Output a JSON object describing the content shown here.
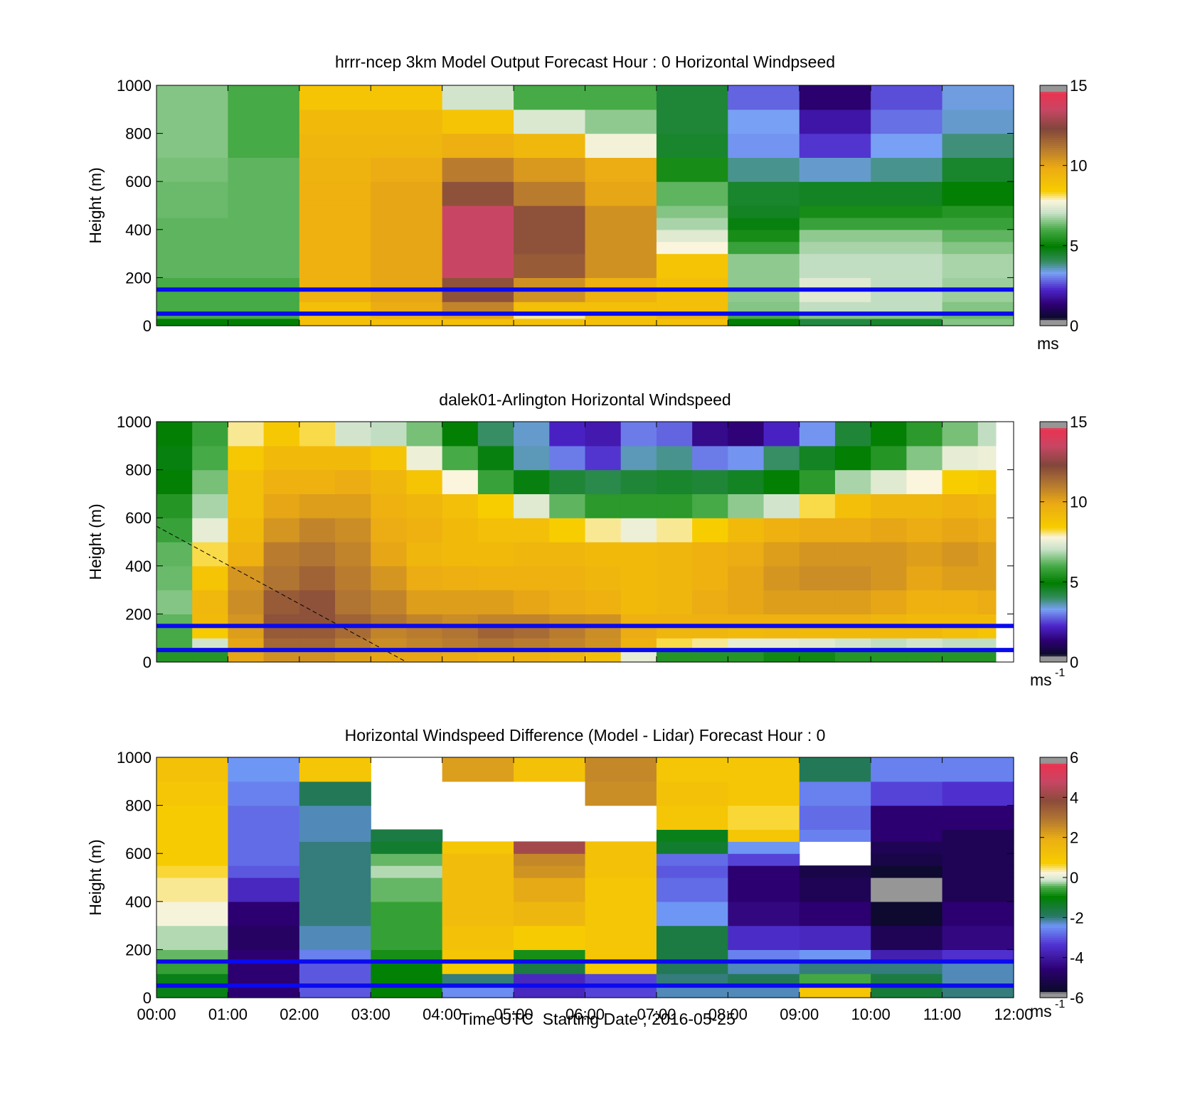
{
  "figure": {
    "xlabel": "Time UTC  Starting Date ; 2016-05-25"
  },
  "chart_data": [
    {
      "type": "heatmap",
      "title": "hrrr-ncep 3km Model Output   Forecast Hour : 0 Horizontal Windpseed",
      "xlabel": "",
      "ylabel": "Height (m)",
      "xlim": [
        0,
        12
      ],
      "ylim": [
        0,
        1000
      ],
      "yticks": [
        "0",
        "200",
        "400",
        "600",
        "800",
        "1000"
      ],
      "x_ticks": [
        "",
        "",
        "",
        "",
        "",
        "",
        "",
        "",
        "",
        "",
        "",
        "",
        ""
      ],
      "colorbar": {
        "ticks": [
          "0",
          "5",
          "10",
          "15"
        ],
        "range": [
          0,
          15
        ],
        "unit": "ms",
        "unit_sup": "",
        "scale": "speed"
      },
      "reference_lines_m": [
        50,
        150
      ],
      "reference_line_color": "#0a0aee",
      "x_edges": [
        0,
        1,
        2,
        3,
        4,
        5,
        6,
        7,
        8,
        9,
        10,
        11,
        12
      ],
      "y_edges": [
        0,
        30,
        55,
        100,
        200,
        300,
        350,
        400,
        450,
        500,
        600,
        700,
        800,
        900,
        1000
      ],
      "values": [
        [
          5,
          5,
          9,
          9,
          9,
          9,
          9,
          9,
          5,
          4.3,
          4.5,
          6.5
        ],
        [
          6,
          6,
          9,
          9.5,
          10,
          8,
          9,
          9.5,
          6,
          6.5,
          6.5,
          6.3
        ],
        [
          6,
          6,
          9,
          9.8,
          10.8,
          9,
          9,
          9,
          6.5,
          7,
          7,
          6.5
        ],
        [
          6,
          6,
          9.6,
          10,
          12,
          10.5,
          9.6,
          9,
          6.6,
          7.4,
          7,
          6.7
        ],
        [
          6.2,
          6.2,
          9.6,
          10,
          13.5,
          11.8,
          10.5,
          8.8,
          6.6,
          7,
          7,
          6.8
        ],
        [
          6.2,
          6.2,
          9.6,
          10,
          13.5,
          12,
          10.5,
          7.8,
          5.8,
          6.8,
          6.8,
          6.5
        ],
        [
          6.2,
          6.2,
          9.6,
          10,
          13.5,
          12,
          10.5,
          7.4,
          5.3,
          6.6,
          6.6,
          6.2
        ],
        [
          6.2,
          6.2,
          9.6,
          10,
          13.5,
          12,
          10.5,
          6.8,
          4.8,
          5.8,
          5.8,
          5.8
        ],
        [
          6.3,
          6.2,
          9.6,
          10,
          13.5,
          12,
          10.5,
          6.5,
          4.6,
          5.3,
          5.3,
          5.5
        ],
        [
          6.3,
          6.2,
          9.6,
          10,
          12,
          11,
          10,
          6.2,
          4.5,
          4.6,
          4.6,
          5
        ],
        [
          6.4,
          6.2,
          9.5,
          9.8,
          11,
          10.3,
          9.8,
          5.3,
          3.8,
          3.5,
          3.8,
          4.5
        ],
        [
          6.5,
          6,
          9.4,
          9.4,
          9.7,
          9.3,
          7.7,
          4.5,
          3.2,
          2.4,
          3.3,
          3.9
        ],
        [
          6.5,
          6,
          9.2,
          9.2,
          8.8,
          7.3,
          6.6,
          4.4,
          3.3,
          1.9,
          2.9,
          3.5
        ],
        [
          6.5,
          6,
          8.8,
          8.8,
          7.2,
          6,
          6,
          4.4,
          2.8,
          1.3,
          2.6,
          3.4
        ]
      ]
    },
    {
      "type": "heatmap",
      "title": "dalek01-Arlington  Horizontal Windspeed",
      "xlabel": "",
      "ylabel": "Height (m)",
      "xlim": [
        0,
        12
      ],
      "ylim": [
        0,
        1000
      ],
      "yticks": [
        "0",
        "200",
        "400",
        "600",
        "800",
        "1000"
      ],
      "x_ticks": [
        "",
        "",
        "",
        "",
        "",
        "",
        "",
        "",
        "",
        "",
        "",
        "",
        ""
      ],
      "colorbar": {
        "ticks": [
          "0",
          "5",
          "10",
          "15"
        ],
        "range": [
          0,
          15
        ],
        "unit": "ms",
        "unit_sup": "-1",
        "scale": "speed"
      },
      "reference_lines_m": [
        50,
        150
      ],
      "reference_line_color": "#0a0aee",
      "dashed_line": {
        "x": [
          0,
          3.5
        ],
        "y": [
          565,
          0
        ]
      },
      "x_edges": [
        0,
        0.5,
        1,
        1.5,
        2,
        2.5,
        3,
        3.5,
        4,
        4.5,
        5,
        5.5,
        6,
        6.5,
        7,
        7.5,
        8,
        8.5,
        9,
        9.5,
        10,
        10.5,
        11,
        11.5,
        12
      ],
      "data_xmax": 11.75,
      "y_edges": [
        0,
        50,
        100,
        150,
        200,
        300,
        400,
        500,
        600,
        700,
        800,
        900,
        1000
      ],
      "values": [
        [
          5.5,
          5.5,
          10,
          10.5,
          10.5,
          10.2,
          10,
          10,
          9.8,
          9.6,
          9.6,
          9.4,
          9,
          7.5,
          5.5,
          5.5,
          5.5,
          5.2,
          5.2,
          5.5,
          5.5,
          5.5,
          5.5,
          5.5
        ],
        [
          6,
          7.2,
          10,
          11.5,
          11.5,
          11,
          10.6,
          10.8,
          11,
          11.2,
          11,
          10.8,
          10.5,
          9.6,
          8.2,
          8,
          7.5,
          7.5,
          7.4,
          7.2,
          7,
          7.2,
          7,
          7
        ],
        [
          6,
          8.5,
          10.2,
          11.8,
          11.8,
          11.4,
          10.8,
          11,
          11.2,
          11.6,
          11.4,
          11,
          10.6,
          9.8,
          9.4,
          9.4,
          9.2,
          9.3,
          9.2,
          9.2,
          9.2,
          9.2,
          9,
          8.8
        ],
        [
          6.2,
          9.2,
          10.4,
          12,
          12,
          11.6,
          11.2,
          10.8,
          10.6,
          10.8,
          10.8,
          10.6,
          10.5,
          9.6,
          9.6,
          9.6,
          9.6,
          9.6,
          9.6,
          9.6,
          9.4,
          9.2,
          9.2,
          9.2
        ],
        [
          6.5,
          9.3,
          10.6,
          11.8,
          12,
          11.2,
          10.8,
          10.2,
          10.2,
          10.2,
          10,
          9.8,
          9.6,
          9.2,
          9.4,
          9.8,
          10,
          10.2,
          10.2,
          10.2,
          10,
          9.6,
          9.6,
          9.8
        ],
        [
          6.3,
          8.8,
          10.4,
          11.2,
          11.6,
          11,
          10.4,
          9.8,
          9.7,
          9.6,
          9.6,
          9.6,
          9.4,
          9.2,
          9.4,
          9.6,
          10,
          10.4,
          10.6,
          10.6,
          10.4,
          10,
          10.2,
          10.2
        ],
        [
          6.2,
          8.2,
          9.6,
          11,
          11.2,
          10.8,
          10,
          9.4,
          9.2,
          9.2,
          9.4,
          9.4,
          9.2,
          9.2,
          9.4,
          9.6,
          9.8,
          10.2,
          10.4,
          10.4,
          10.4,
          10.2,
          10.4,
          10.2
        ],
        [
          5.8,
          7.5,
          9.2,
          10.4,
          10.8,
          10.6,
          9.8,
          9.6,
          9.2,
          9,
          9,
          8.4,
          8,
          7.6,
          8,
          8.4,
          9.2,
          9.6,
          9.8,
          9.8,
          10,
          9.8,
          10,
          9.8
        ],
        [
          5.5,
          6.8,
          9,
          10,
          10.2,
          10.2,
          9.6,
          9.4,
          9,
          8.4,
          7.4,
          6.2,
          5.6,
          5.6,
          5.6,
          6,
          6.6,
          7.2,
          8.2,
          9,
          9.4,
          9.4,
          9.6,
          9.4
        ],
        [
          5,
          6.4,
          9,
          9.6,
          9.6,
          9.8,
          9.4,
          8.8,
          7.8,
          5.8,
          4.8,
          4.4,
          4.2,
          4.4,
          4.5,
          4.4,
          4.6,
          5,
          5.6,
          6.8,
          7.4,
          7.8,
          8.4,
          8.6
        ],
        [
          4.8,
          6,
          8.6,
          9.2,
          9.2,
          9.2,
          8.8,
          7.6,
          6,
          4.8,
          3.6,
          3,
          2.4,
          3.6,
          3.8,
          3,
          3.2,
          4,
          4.6,
          5,
          5.5,
          6.5,
          7.5,
          7.6
        ],
        [
          5,
          5.8,
          8,
          8.6,
          8.2,
          7.2,
          7,
          6.4,
          5,
          4,
          3.5,
          2.2,
          2,
          3,
          2.8,
          1.6,
          1.4,
          2.2,
          3.2,
          4.4,
          5,
          5.6,
          6.4,
          7
        ]
      ]
    },
    {
      "type": "heatmap",
      "title": "Horizontal Windspeed Difference (Model - Lidar) Forecast Hour : 0",
      "xlabel": "",
      "ylabel": "Height (m)",
      "xlim": [
        0,
        12
      ],
      "ylim": [
        0,
        1000
      ],
      "yticks": [
        "0",
        "200",
        "400",
        "600",
        "800",
        "1000"
      ],
      "x_ticks": [
        "00:00",
        "01:00",
        "02:00",
        "03:00",
        "04:00",
        "05:00",
        "06:00",
        "07:00",
        "08:00",
        "09:00",
        "10:00",
        "11:00",
        "12:00"
      ],
      "colorbar": {
        "ticks": [
          "-6",
          "-4",
          "-2",
          "0",
          "2",
          "4",
          "6"
        ],
        "range": [
          -6,
          6
        ],
        "unit": "ms",
        "unit_sup": "-1",
        "scale": "diff"
      },
      "reference_lines_m": [
        50,
        150
      ],
      "reference_line_color": "#0a0aee",
      "x_edges": [
        0,
        1,
        2,
        3,
        4,
        5,
        6,
        7,
        8,
        9,
        10,
        11,
        12
      ],
      "y_edges": [
        0,
        50,
        100,
        150,
        200,
        300,
        400,
        500,
        550,
        600,
        650,
        700,
        800,
        900,
        1000
      ],
      "values": [
        [
          -1.2,
          -4.6,
          -3,
          -1,
          -2.5,
          -3.6,
          -3.2,
          -2.2,
          -2.2,
          1,
          -1.5,
          -2
        ],
        [
          -1.2,
          -4.6,
          -3,
          -1,
          -2,
          -3.6,
          -3.2,
          -2,
          -1.8,
          -0.5,
          -1.6,
          -2.2
        ],
        [
          -0.6,
          -4.6,
          -3,
          -1,
          0.8,
          -1.6,
          0.8,
          -1.8,
          -2.2,
          -2,
          -2,
          -2.2
        ],
        [
          -0.4,
          -4.6,
          -2.6,
          -0.8,
          1,
          -0.8,
          1,
          -1.6,
          -2.6,
          -2.4,
          -3.8,
          -3.4
        ],
        [
          -0.2,
          -4.8,
          -2.2,
          -0.6,
          1.2,
          0.8,
          1,
          -1.6,
          -3.5,
          -3.6,
          -5,
          -4.4
        ],
        [
          0.2,
          -4.6,
          -2,
          -0.6,
          1.4,
          1.6,
          1,
          -2.4,
          -4.4,
          -4.6,
          -5.6,
          -4.6
        ],
        [
          0.4,
          -3.6,
          -2,
          -0.4,
          1.4,
          2,
          1,
          -2.8,
          -4.6,
          -5,
          -5.8,
          -5
        ],
        [
          0.6,
          -3,
          -2,
          -0.2,
          1.4,
          2.4,
          1.2,
          -3,
          -4.6,
          -5.2,
          -5.6,
          -5
        ],
        [
          0.8,
          -2.8,
          -2,
          -0.4,
          1.4,
          2.6,
          1.2,
          -2.8,
          -3.2,
          null,
          -5.2,
          -5
        ],
        [
          0.8,
          -2.8,
          -2,
          -1.4,
          1,
          4.2,
          1.2,
          -1.4,
          -2.4,
          null,
          -5,
          -5
        ],
        [
          0.8,
          -2.8,
          -2.2,
          -1.6,
          null,
          null,
          null,
          -1.2,
          1,
          -2.6,
          -4.6,
          -5
        ],
        [
          0.8,
          -2.8,
          -2.2,
          null,
          null,
          null,
          null,
          1,
          0.6,
          -2.8,
          -4.6,
          -4.6
        ],
        [
          1,
          -2.6,
          -1.8,
          null,
          null,
          null,
          2.5,
          1.2,
          1,
          -2.6,
          -3.2,
          -3.4
        ],
        [
          1.2,
          -2.4,
          1,
          null,
          2.2,
          1.2,
          2.6,
          1,
          1,
          -1.8,
          -2.6,
          -2.6
        ]
      ]
    }
  ]
}
